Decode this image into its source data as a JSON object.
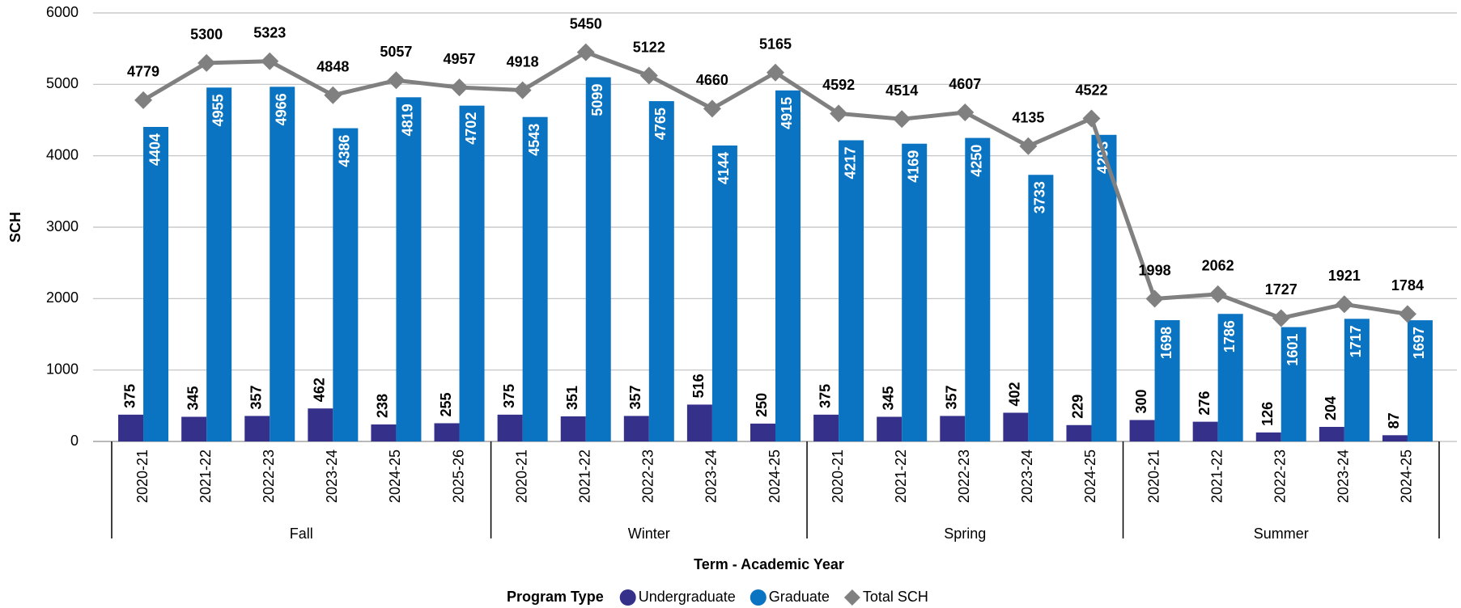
{
  "chart_data": {
    "type": "bar_line",
    "y_label": "SCH",
    "x_label": "Term - Academic Year",
    "legend_title": "Program Type",
    "groups": [
      {
        "name": "Fall",
        "categories": [
          "2020-21",
          "2021-22",
          "2022-23",
          "2023-24",
          "2024-25",
          "2025-26"
        ]
      },
      {
        "name": "Winter",
        "categories": [
          "2020-21",
          "2021-22",
          "2022-23",
          "2023-24",
          "2024-25"
        ]
      },
      {
        "name": "Spring",
        "categories": [
          "2020-21",
          "2021-22",
          "2022-23",
          "2023-24",
          "2024-25"
        ]
      },
      {
        "name": "Summer",
        "categories": [
          "2020-21",
          "2021-22",
          "2022-23",
          "2023-24",
          "2024-25"
        ]
      }
    ],
    "series": [
      {
        "name": "Undergraduate",
        "color": "#35308a",
        "kind": "bar",
        "values": [
          375,
          345,
          357,
          462,
          238,
          255,
          375,
          351,
          357,
          516,
          250,
          375,
          345,
          357,
          402,
          229,
          300,
          276,
          126,
          204,
          87
        ]
      },
      {
        "name": "Graduate",
        "color": "#0a74c2",
        "kind": "bar",
        "values": [
          4404,
          4955,
          4966,
          4386,
          4819,
          4702,
          4543,
          5099,
          4765,
          4144,
          4915,
          4217,
          4169,
          4250,
          3733,
          4293,
          1698,
          1786,
          1601,
          1717,
          1697
        ]
      },
      {
        "name": "Total SCH",
        "color": "#808080",
        "kind": "line",
        "values": [
          4779,
          5300,
          5323,
          4848,
          5057,
          4957,
          4918,
          5450,
          5122,
          4660,
          5165,
          4592,
          4514,
          4607,
          4135,
          4522,
          1998,
          2062,
          1727,
          1921,
          1784
        ]
      }
    ],
    "ylim": [
      0,
      6000
    ],
    "yticks": [
      0,
      1000,
      2000,
      3000,
      4000,
      5000,
      6000
    ],
    "grid": true
  }
}
